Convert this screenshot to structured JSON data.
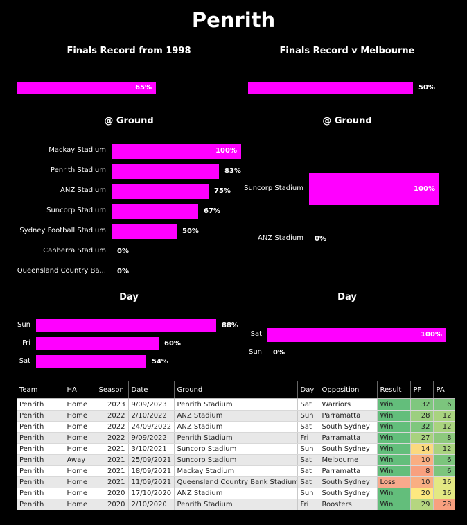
{
  "page": {
    "title": "Penrith"
  },
  "chart_data": [
    {
      "type": "bar",
      "orientation": "horizontal",
      "title": "Finals Record from 1998",
      "categories": [
        ""
      ],
      "values": [
        65
      ],
      "labels": [
        "65%"
      ],
      "unit": "%",
      "xlim": [
        0,
        100
      ]
    },
    {
      "type": "bar",
      "orientation": "horizontal",
      "title": "Finals Record v Melbourne",
      "categories": [
        ""
      ],
      "values": [
        50
      ],
      "labels": [
        "50%"
      ],
      "unit": "%",
      "xlim": [
        0,
        100
      ]
    },
    {
      "type": "bar",
      "orientation": "horizontal",
      "title": "@ Ground",
      "categories": [
        "Mackay Stadium",
        "Penrith Stadium",
        "ANZ Stadium",
        "Suncorp Stadium",
        "Sydney Football Stadium",
        "Canberra Stadium",
        "Queensland Country Ba..."
      ],
      "values": [
        100,
        83,
        75,
        67,
        50,
        0,
        0
      ],
      "labels": [
        "100%",
        "83%",
        "75%",
        "67%",
        "50%",
        "0%",
        "0%"
      ],
      "unit": "%",
      "xlim": [
        0,
        100
      ]
    },
    {
      "type": "bar",
      "orientation": "horizontal",
      "title": "@ Ground",
      "categories": [
        "Suncorp Stadium",
        "ANZ Stadium"
      ],
      "values": [
        100,
        0
      ],
      "labels": [
        "100%",
        "0%"
      ],
      "unit": "%",
      "xlim": [
        0,
        100
      ]
    },
    {
      "type": "bar",
      "orientation": "horizontal",
      "title": "Day",
      "categories": [
        "Sun",
        "Fri",
        "Sat"
      ],
      "values": [
        88,
        60,
        54
      ],
      "labels": [
        "88%",
        "60%",
        "54%"
      ],
      "unit": "%",
      "xlim": [
        0,
        100
      ]
    },
    {
      "type": "bar",
      "orientation": "horizontal",
      "title": "Day",
      "categories": [
        "Sat",
        "Sun"
      ],
      "values": [
        100,
        0
      ],
      "labels": [
        "100%",
        "0%"
      ],
      "unit": "%",
      "xlim": [
        0,
        100
      ]
    },
    {
      "type": "table",
      "columns": [
        "Team",
        "HA",
        "Season",
        "Date",
        "Ground",
        "Day",
        "Opposition",
        "Result",
        "PF",
        "PA"
      ],
      "rows": [
        [
          "Penrith",
          "Home",
          "2023",
          "9/09/2023",
          "Penrith Stadium",
          "Sat",
          "Warriors",
          "Win",
          "32",
          "6"
        ],
        [
          "Penrith",
          "Home",
          "2022",
          "2/10/2022",
          "ANZ Stadium",
          "Sun",
          "Parramatta",
          "Win",
          "28",
          "12"
        ],
        [
          "Penrith",
          "Home",
          "2022",
          "24/09/2022",
          "ANZ Stadium",
          "Sat",
          "South Sydney",
          "Win",
          "32",
          "12"
        ],
        [
          "Penrith",
          "Home",
          "2022",
          "9/09/2022",
          "Penrith Stadium",
          "Fri",
          "Parramatta",
          "Win",
          "27",
          "8"
        ],
        [
          "Penrith",
          "Home",
          "2021",
          "3/10/2021",
          "Suncorp Stadium",
          "Sun",
          "South Sydney",
          "Win",
          "14",
          "12"
        ],
        [
          "Penrith",
          "Away",
          "2021",
          "25/09/2021",
          "Suncorp Stadium",
          "Sat",
          "Melbourne",
          "Win",
          "10",
          "6"
        ],
        [
          "Penrith",
          "Home",
          "2021",
          "18/09/2021",
          "Mackay Stadium",
          "Sat",
          "Parramatta",
          "Win",
          "8",
          "6"
        ],
        [
          "Penrith",
          "Home",
          "2021",
          "11/09/2021",
          "Queensland Country Bank Stadium",
          "Sat",
          "South Sydney",
          "Loss",
          "10",
          "16"
        ],
        [
          "Penrith",
          "Home",
          "2020",
          "17/10/2020",
          "ANZ Stadium",
          "Sun",
          "South Sydney",
          "Win",
          "20",
          "16"
        ],
        [
          "Penrith",
          "Home",
          "2020",
          "2/10/2020",
          "Penrith Stadium",
          "Fri",
          "Roosters",
          "Win",
          "29",
          "28"
        ]
      ],
      "cell_colors": {
        "Result": {
          "Win": "#63be7b",
          "Loss": "#f8a98c"
        },
        "PF": [
          "#7fc77e",
          "#9ccf7f",
          "#7fc77e",
          "#a8d27f",
          "#fbd97f",
          "#f9ae82",
          "#f8a07f",
          "#f9ae82",
          "#fde880",
          "#b5d680"
        ],
        "PA": [
          "#7cc57d",
          "#a9d37f",
          "#a9d37f",
          "#8dc97d",
          "#a9d37f",
          "#7cc57d",
          "#7cc57d",
          "#e3e883",
          "#e3e883",
          "#f8a07f"
        ]
      }
    }
  ],
  "colors": {
    "bar": "#ff00ff",
    "background": "#000000"
  }
}
